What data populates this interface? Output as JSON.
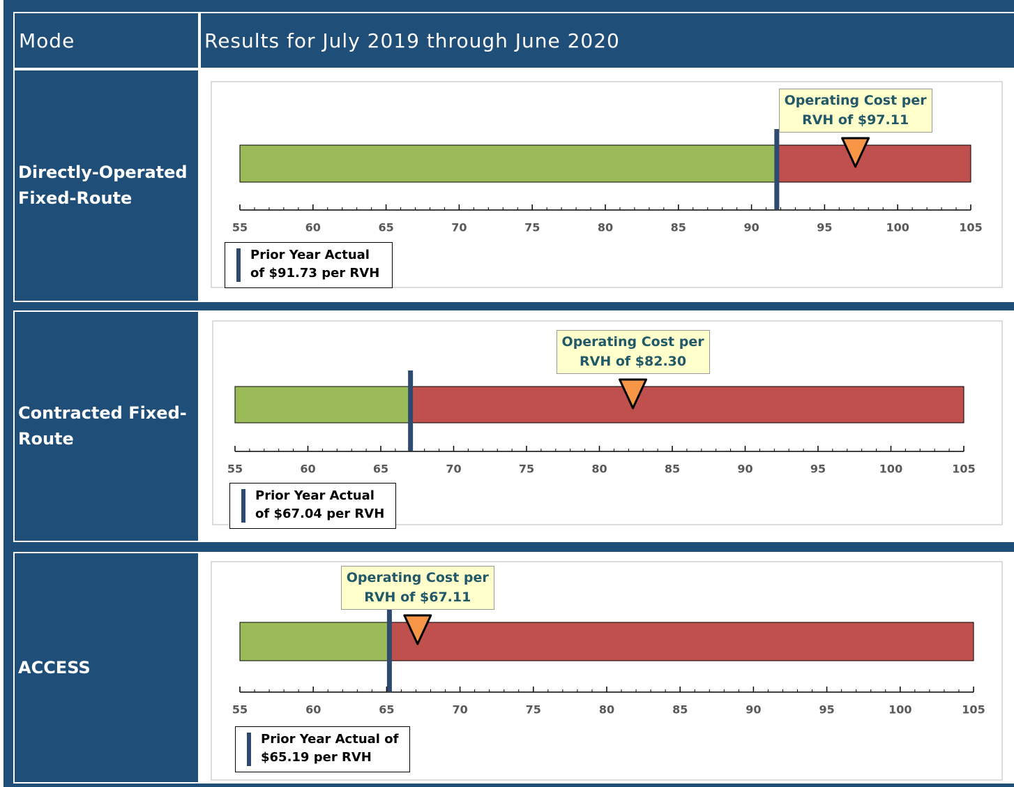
{
  "table": {
    "headers": [
      "Mode",
      "Results for July 2019 through June 2020"
    ]
  },
  "chart_data": [
    {
      "type": "bullet",
      "row_label": "Directly-Operated Fixed-Route",
      "xlim": [
        55,
        105
      ],
      "xticks": [
        55,
        60,
        65,
        70,
        75,
        80,
        85,
        90,
        95,
        100,
        105
      ],
      "actual": 97.11,
      "actual_label": "Operating Cost per RVH of $97.11",
      "target": 91.73,
      "target_label": "Prior Year Actual of $91.73 per RVH",
      "colors": {
        "good": "#9bbb59",
        "bad": "#c0504d",
        "marker": "#f79646",
        "target": "#2e4a6e"
      }
    },
    {
      "type": "bullet",
      "row_label": "Contracted Fixed-Route",
      "xlim": [
        55,
        105
      ],
      "xticks": [
        55,
        60,
        65,
        70,
        75,
        80,
        85,
        90,
        95,
        100,
        105
      ],
      "actual": 82.3,
      "actual_label": "Operating Cost per RVH of $82.30",
      "target": 67.04,
      "target_label": "Prior Year Actual of $67.04 per RVH",
      "colors": {
        "good": "#9bbb59",
        "bad": "#c0504d",
        "marker": "#f79646",
        "target": "#2e4a6e"
      }
    },
    {
      "type": "bullet",
      "row_label": "ACCESS",
      "xlim": [
        55,
        105
      ],
      "xticks": [
        55,
        60,
        65,
        70,
        75,
        80,
        85,
        90,
        95,
        100,
        105
      ],
      "actual": 67.11,
      "actual_label": "Operating Cost per RVH of $67.11",
      "target": 65.19,
      "target_label": "Prior Year Actual of $65.19 per RVH",
      "colors": {
        "good": "#9bbb59",
        "bad": "#c0504d",
        "marker": "#f79646",
        "target": "#2e4a6e"
      }
    }
  ]
}
